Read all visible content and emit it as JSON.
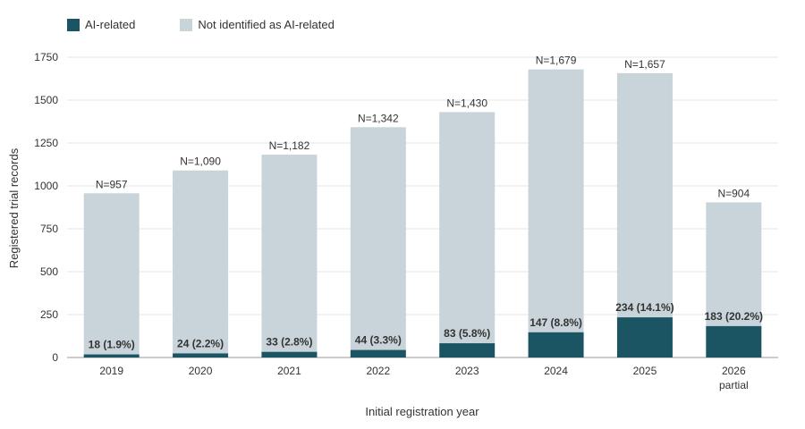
{
  "chart_data": {
    "type": "bar",
    "stacked": true,
    "categories": [
      "2019",
      "2020",
      "2021",
      "2022",
      "2023",
      "2024",
      "2025",
      "2026"
    ],
    "category_sublabels": [
      "",
      "",
      "",
      "",
      "",
      "",
      "",
      "partial"
    ],
    "series": [
      {
        "name": "AI-related",
        "color": "#1b5463",
        "values": [
          18,
          24,
          33,
          44,
          83,
          147,
          234,
          183
        ]
      },
      {
        "name": "Not identified as AI-related",
        "color": "#c8d4d9",
        "values": [
          939,
          1066,
          1149,
          1298,
          1347,
          1532,
          1423,
          721
        ]
      }
    ],
    "totals": [
      957,
      1090,
      1182,
      1342,
      1430,
      1679,
      1657,
      904
    ],
    "total_labels": [
      "N=957",
      "N=1,090",
      "N=1,182",
      "N=1,342",
      "N=1,430",
      "N=1,679",
      "N=1,657",
      "N=904"
    ],
    "ai_labels": [
      "18 (1.9%)",
      "24 (2.2%)",
      "33 (2.8%)",
      "44 (3.3%)",
      "83 (5.8%)",
      "147 (8.8%)",
      "234 (14.1%)",
      "183 (20.2%)"
    ],
    "xlabel": "Initial registration year",
    "ylabel": "Registered trial records",
    "ylim": [
      0,
      1750
    ],
    "yticks": [
      0,
      250,
      500,
      750,
      1000,
      1250,
      1500,
      1750
    ],
    "grid": true,
    "legend_position": "top-left"
  }
}
